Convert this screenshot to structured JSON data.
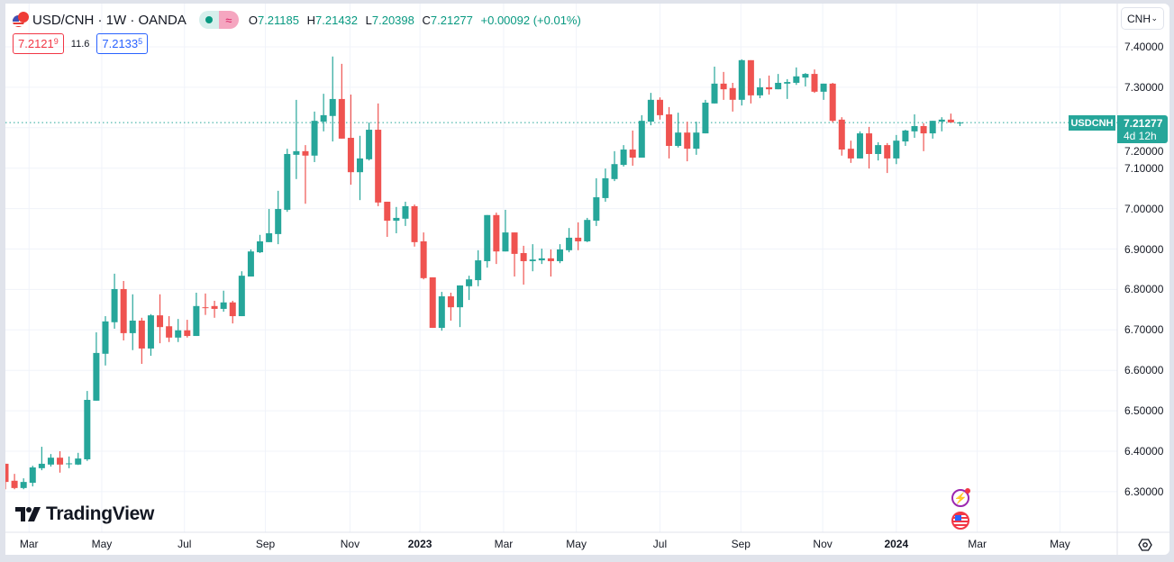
{
  "header": {
    "title": "USD/CNH · 1W · OANDA",
    "market_status_icon": "market-open-dot",
    "data_icon": "≈",
    "ohlc": {
      "o_label": "O",
      "o": "7.21185",
      "h_label": "H",
      "h": "7.21432",
      "l_label": "L",
      "l": "7.20398",
      "c_label": "C",
      "c": "7.21277",
      "change": "+0.00092 (+0.01%)"
    },
    "sell_price": "7.2121",
    "sell_pip": "9",
    "spread": "11.6",
    "buy_price": "7.2133",
    "buy_pip": "5"
  },
  "currency_select": {
    "value": "CNH"
  },
  "price_tag": {
    "symbol": "USDCNH",
    "price": "7.21277",
    "countdown": "4d 12h"
  },
  "logo_text": "TradingView",
  "colors": {
    "up": "#26a69a",
    "down": "#ef5350",
    "grid": "#f0f3fa",
    "price_line": "#26a69a"
  },
  "chart_data": {
    "type": "candlestick",
    "title": "USD/CNH · 1W · OANDA",
    "interval": "1W",
    "ylim": [
      6.3,
      7.4
    ],
    "y_ticks": [
      "7.40000",
      "7.30000",
      "7.20000",
      "7.10000",
      "7.00000",
      "6.90000",
      "6.80000",
      "6.70000",
      "6.60000",
      "6.50000",
      "6.40000",
      "6.30000"
    ],
    "x_ticks": [
      {
        "label": "Mar",
        "week": 2.6
      },
      {
        "label": "May",
        "week": 10.6
      },
      {
        "label": "Jul",
        "week": 19.7
      },
      {
        "label": "Sep",
        "week": 28.6
      },
      {
        "label": "Nov",
        "week": 37.9
      },
      {
        "label": "2023",
        "week": 45.6,
        "bold": true
      },
      {
        "label": "Mar",
        "week": 54.8
      },
      {
        "label": "May",
        "week": 62.8
      },
      {
        "label": "Jul",
        "week": 72.0
      },
      {
        "label": "Sep",
        "week": 80.9
      },
      {
        "label": "Nov",
        "week": 89.9
      },
      {
        "label": "2024",
        "week": 98.0,
        "bold": true
      },
      {
        "label": "Mar",
        "week": 106.9
      },
      {
        "label": "May",
        "week": 116.0
      }
    ],
    "last_price": 7.21277,
    "candles_ohlc": [
      [
        6.369,
        6.369,
        6.306,
        6.324
      ],
      [
        6.327,
        6.344,
        6.306,
        6.309
      ],
      [
        6.309,
        6.333,
        6.306,
        6.324
      ],
      [
        6.322,
        6.364,
        6.313,
        6.36
      ],
      [
        6.358,
        6.411,
        6.353,
        6.369
      ],
      [
        6.367,
        6.393,
        6.362,
        6.384
      ],
      [
        6.384,
        6.4,
        6.347,
        6.367
      ],
      [
        6.368,
        6.387,
        6.358,
        6.37
      ],
      [
        6.367,
        6.396,
        6.366,
        6.382
      ],
      [
        6.38,
        6.549,
        6.376,
        6.527
      ],
      [
        6.525,
        6.694,
        6.525,
        6.643
      ],
      [
        6.641,
        6.734,
        6.612,
        6.721
      ],
      [
        6.719,
        6.839,
        6.703,
        6.801
      ],
      [
        6.801,
        6.821,
        6.674,
        6.692
      ],
      [
        6.692,
        6.788,
        6.65,
        6.723
      ],
      [
        6.723,
        6.73,
        6.616,
        6.654
      ],
      [
        6.654,
        6.739,
        6.636,
        6.736
      ],
      [
        6.736,
        6.788,
        6.667,
        6.707
      ],
      [
        6.709,
        6.734,
        6.67,
        6.681
      ],
      [
        6.681,
        6.727,
        6.67,
        6.699
      ],
      [
        6.699,
        6.725,
        6.681,
        6.685
      ],
      [
        6.685,
        6.792,
        6.685,
        6.759
      ],
      [
        6.756,
        6.79,
        6.737,
        6.754
      ],
      [
        6.759,
        6.772,
        6.73,
        6.752
      ],
      [
        6.752,
        6.797,
        6.745,
        6.768
      ],
      [
        6.768,
        6.772,
        6.716,
        6.734
      ],
      [
        6.734,
        6.845,
        6.734,
        6.834
      ],
      [
        6.832,
        6.899,
        6.832,
        6.894
      ],
      [
        6.892,
        6.935,
        6.89,
        6.919
      ],
      [
        6.917,
        6.999,
        6.917,
        6.939
      ],
      [
        6.937,
        7.044,
        6.912,
        6.999
      ],
      [
        6.997,
        7.148,
        6.992,
        7.135
      ],
      [
        7.133,
        7.269,
        7.073,
        7.142
      ],
      [
        7.142,
        7.157,
        7.012,
        7.131
      ],
      [
        7.131,
        7.24,
        7.115,
        7.217
      ],
      [
        7.215,
        7.284,
        7.191,
        7.231
      ],
      [
        7.229,
        7.376,
        7.166,
        7.271
      ],
      [
        7.271,
        7.358,
        7.173,
        7.173
      ],
      [
        7.175,
        7.282,
        7.059,
        7.09
      ],
      [
        7.09,
        7.18,
        7.021,
        7.124
      ],
      [
        7.122,
        7.213,
        7.119,
        7.195
      ],
      [
        7.195,
        7.26,
        7.006,
        7.015
      ],
      [
        7.017,
        7.017,
        6.93,
        6.97
      ],
      [
        6.97,
        7.004,
        6.939,
        6.977
      ],
      [
        6.975,
        7.017,
        6.957,
        7.006
      ],
      [
        7.006,
        7.01,
        6.906,
        6.917
      ],
      [
        6.919,
        6.941,
        6.825,
        6.828
      ],
      [
        6.83,
        6.83,
        6.705,
        6.705
      ],
      [
        6.705,
        6.794,
        6.698,
        6.783
      ],
      [
        6.783,
        6.792,
        6.723,
        6.756
      ],
      [
        6.756,
        6.81,
        6.707,
        6.81
      ],
      [
        6.808,
        6.834,
        6.774,
        6.825
      ],
      [
        6.823,
        6.897,
        6.808,
        6.872
      ],
      [
        6.87,
        6.984,
        6.854,
        6.984
      ],
      [
        6.984,
        6.99,
        6.863,
        6.894
      ],
      [
        6.894,
        6.997,
        6.894,
        6.941
      ],
      [
        6.941,
        6.941,
        6.832,
        6.888
      ],
      [
        6.89,
        6.908,
        6.812,
        6.87
      ],
      [
        6.87,
        6.912,
        6.845,
        6.874
      ],
      [
        6.872,
        6.901,
        6.863,
        6.877
      ],
      [
        6.877,
        6.899,
        6.832,
        6.87
      ],
      [
        6.87,
        6.912,
        6.865,
        6.899
      ],
      [
        6.897,
        6.952,
        6.892,
        6.928
      ],
      [
        6.928,
        6.966,
        6.897,
        6.919
      ],
      [
        6.919,
        6.977,
        6.917,
        6.972
      ],
      [
        6.97,
        7.075,
        6.957,
        7.028
      ],
      [
        7.026,
        7.099,
        7.017,
        7.075
      ],
      [
        7.073,
        7.142,
        7.068,
        7.11
      ],
      [
        7.108,
        7.157,
        7.104,
        7.146
      ],
      [
        7.146,
        7.193,
        7.106,
        7.126
      ],
      [
        7.126,
        7.231,
        7.126,
        7.217
      ],
      [
        7.215,
        7.286,
        7.206,
        7.269
      ],
      [
        7.269,
        7.275,
        7.22,
        7.231
      ],
      [
        7.233,
        7.251,
        7.124,
        7.155
      ],
      [
        7.155,
        7.237,
        7.151,
        7.188
      ],
      [
        7.188,
        7.215,
        7.117,
        7.148
      ],
      [
        7.148,
        7.215,
        7.133,
        7.188
      ],
      [
        7.186,
        7.269,
        7.186,
        7.262
      ],
      [
        7.26,
        7.351,
        7.26,
        7.309
      ],
      [
        7.309,
        7.338,
        7.269,
        7.295
      ],
      [
        7.298,
        7.311,
        7.24,
        7.269
      ],
      [
        7.269,
        7.369,
        7.255,
        7.367
      ],
      [
        7.367,
        7.367,
        7.26,
        7.28
      ],
      [
        7.28,
        7.322,
        7.273,
        7.3
      ],
      [
        7.3,
        7.329,
        7.282,
        7.295
      ],
      [
        7.295,
        7.333,
        7.295,
        7.311
      ],
      [
        7.309,
        7.32,
        7.271,
        7.313
      ],
      [
        7.311,
        7.349,
        7.306,
        7.327
      ],
      [
        7.324,
        7.335,
        7.302,
        7.333
      ],
      [
        7.333,
        7.344,
        7.286,
        7.289
      ],
      [
        7.289,
        7.309,
        7.269,
        7.309
      ],
      [
        7.309,
        7.311,
        7.213,
        7.217
      ],
      [
        7.22,
        7.226,
        7.131,
        7.146
      ],
      [
        7.148,
        7.168,
        7.113,
        7.124
      ],
      [
        7.124,
        7.191,
        7.124,
        7.186
      ],
      [
        7.186,
        7.202,
        7.099,
        7.135
      ],
      [
        7.135,
        7.164,
        7.119,
        7.157
      ],
      [
        7.157,
        7.162,
        7.088,
        7.124
      ],
      [
        7.124,
        7.182,
        7.11,
        7.168
      ],
      [
        7.166,
        7.195,
        7.155,
        7.193
      ],
      [
        7.191,
        7.233,
        7.175,
        7.204
      ],
      [
        7.204,
        7.211,
        7.142,
        7.186
      ],
      [
        7.186,
        7.217,
        7.173,
        7.217
      ],
      [
        7.215,
        7.226,
        7.191,
        7.22
      ],
      [
        7.22,
        7.235,
        7.213,
        7.213
      ],
      [
        7.21185,
        7.21432,
        7.20398,
        7.21277
      ]
    ]
  }
}
